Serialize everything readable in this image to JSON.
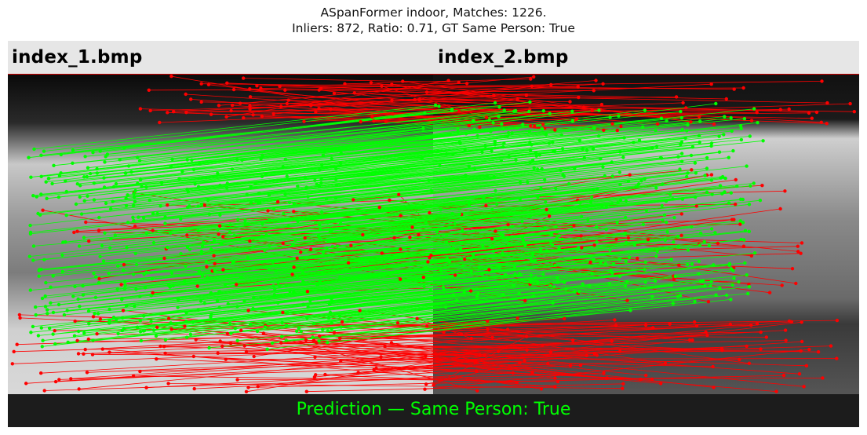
{
  "title": {
    "line1": "ASpanFormer indoor, Matches: 1226.",
    "line2": "Inliers: 872, Ratio: 0.71, GT Same Person: True"
  },
  "images": {
    "left_name": "index_1.bmp",
    "right_name": "index_2.bmp"
  },
  "prediction": "Prediction — Same Person: True",
  "colors": {
    "inlier": "#00ff00",
    "outlier": "#ff0000"
  }
}
